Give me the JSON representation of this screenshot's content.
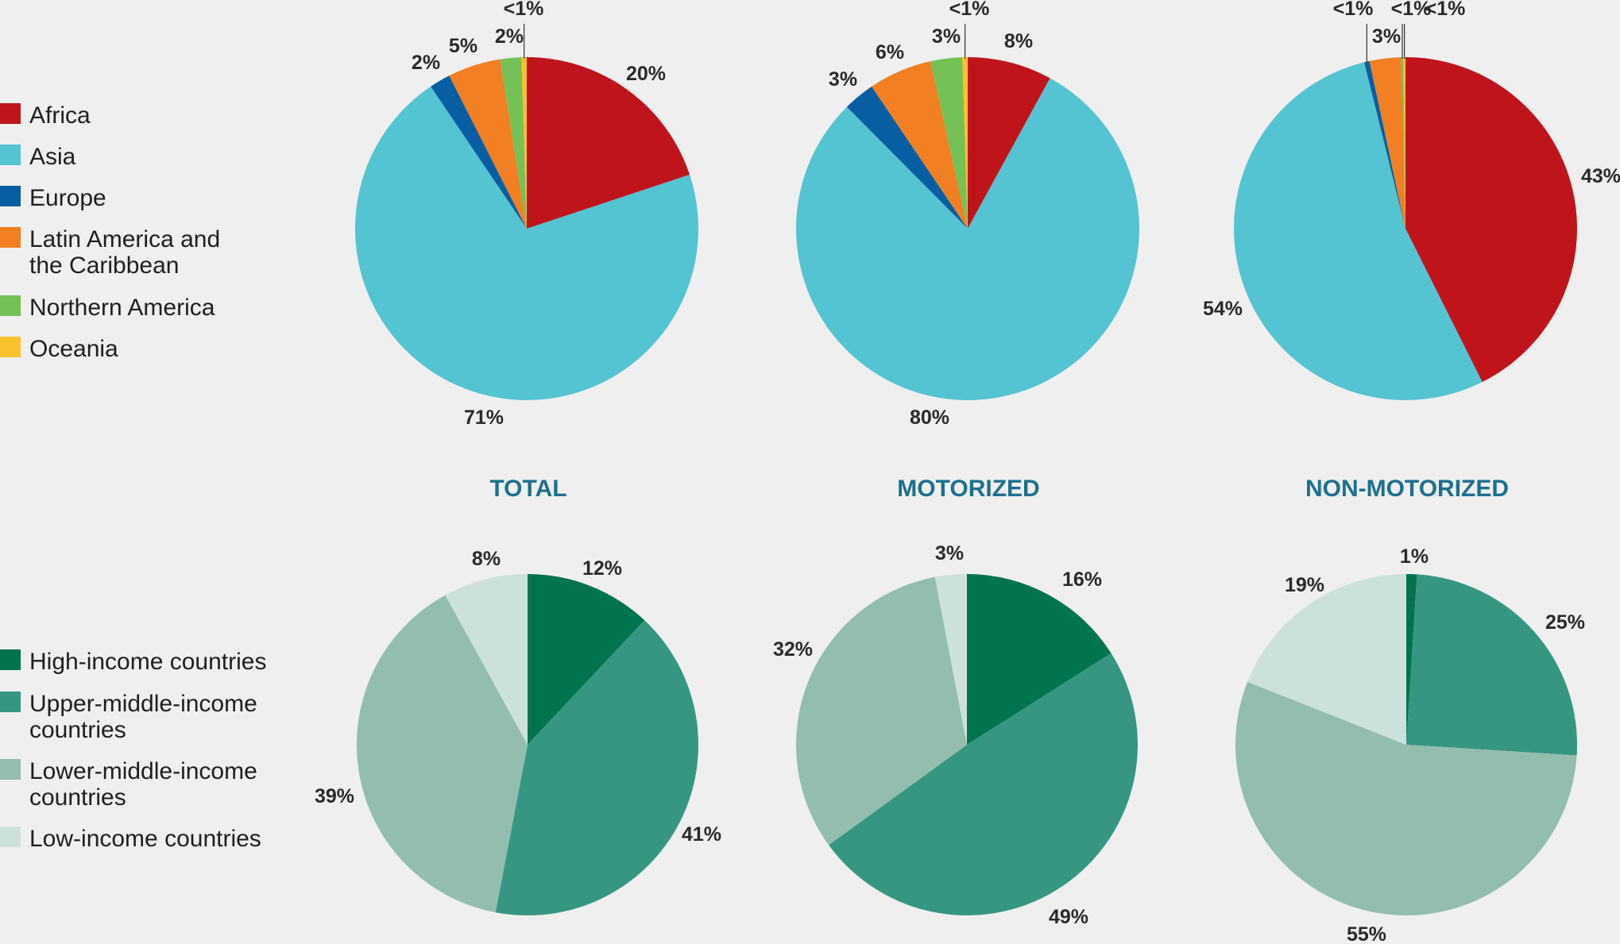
{
  "chart_data": [
    {
      "type": "pie",
      "group": "region",
      "title": "TOTAL",
      "slices": [
        {
          "name": "Africa",
          "value": 20,
          "label": "20%",
          "color": "#c0141c"
        },
        {
          "name": "Asia",
          "value": 71,
          "label": "71%",
          "color": "#54c3d2"
        },
        {
          "name": "Europe",
          "value": 2,
          "label": "2%",
          "color": "#075ea3"
        },
        {
          "name": "Latin America and the Caribbean",
          "value": 5,
          "label": "5%",
          "color": "#f27f22"
        },
        {
          "name": "Northern America",
          "value": 2,
          "label": "2%",
          "color": "#74c156"
        },
        {
          "name": "Oceania",
          "value": 0.5,
          "label": "<1%",
          "color": "#f9c12c"
        }
      ]
    },
    {
      "type": "pie",
      "group": "region",
      "title": "MOTORIZED",
      "slices": [
        {
          "name": "Africa",
          "value": 8,
          "label": "8%",
          "color": "#c0141c"
        },
        {
          "name": "Asia",
          "value": 80,
          "label": "80%",
          "color": "#54c3d2"
        },
        {
          "name": "Europe",
          "value": 3,
          "label": "3%",
          "color": "#075ea3"
        },
        {
          "name": "Latin America and the Caribbean",
          "value": 6,
          "label": "6%",
          "color": "#f27f22"
        },
        {
          "name": "Northern America",
          "value": 3,
          "label": "3%",
          "color": "#74c156"
        },
        {
          "name": "Oceania",
          "value": 0.5,
          "label": "<1%",
          "color": "#f9c12c"
        }
      ]
    },
    {
      "type": "pie",
      "group": "region",
      "title": "NON-MOTORIZED",
      "slices": [
        {
          "name": "Africa",
          "value": 43,
          "label": "43%",
          "color": "#c0141c"
        },
        {
          "name": "Asia",
          "value": 54,
          "label": "54%",
          "color": "#54c3d2"
        },
        {
          "name": "Europe",
          "value": 0.5,
          "label": "<1%",
          "color": "#075ea3"
        },
        {
          "name": "Latin America and the Caribbean",
          "value": 3,
          "label": "3%",
          "color": "#f27f22"
        },
        {
          "name": "Northern America",
          "value": 0.2,
          "label": "<1%",
          "color": "#74c156"
        },
        {
          "name": "Oceania",
          "value": 0.2,
          "label": "<1%",
          "color": "#f9c12c"
        }
      ]
    },
    {
      "type": "pie",
      "group": "income",
      "title": "TOTAL",
      "slices": [
        {
          "name": "High-income countries",
          "value": 12,
          "label": "12%",
          "color": "#00734f"
        },
        {
          "name": "Upper-middle-income countries",
          "value": 41,
          "label": "41%",
          "color": "#369682"
        },
        {
          "name": "Lower-middle-income countries",
          "value": 39,
          "label": "39%",
          "color": "#92bdaf"
        },
        {
          "name": "Low-income countries",
          "value": 8,
          "label": "8%",
          "color": "#cde1dc"
        }
      ]
    },
    {
      "type": "pie",
      "group": "income",
      "title": "MOTORIZED",
      "slices": [
        {
          "name": "High-income countries",
          "value": 16,
          "label": "16%",
          "color": "#00734f"
        },
        {
          "name": "Upper-middle-income countries",
          "value": 49,
          "label": "49%",
          "color": "#369682"
        },
        {
          "name": "Lower-middle-income countries",
          "value": 32,
          "label": "32%",
          "color": "#92bdaf"
        },
        {
          "name": "Low-income countries",
          "value": 3,
          "label": "3%",
          "color": "#cde1dc"
        }
      ]
    },
    {
      "type": "pie",
      "group": "income",
      "title": "NON-MOTORIZED",
      "slices": [
        {
          "name": "High-income countries",
          "value": 1,
          "label": "1%",
          "color": "#00734f"
        },
        {
          "name": "Upper-middle-income countries",
          "value": 25,
          "label": "25%",
          "color": "#369682"
        },
        {
          "name": "Lower-middle-income countries",
          "value": 55,
          "label": "55%",
          "color": "#92bdaf"
        },
        {
          "name": "Low-income countries",
          "value": 19,
          "label": "19%",
          "color": "#cde1dc"
        }
      ]
    }
  ],
  "legends": {
    "region": [
      {
        "name": "Africa",
        "color": "#c0141c"
      },
      {
        "name": "Asia",
        "color": "#54c3d2"
      },
      {
        "name": "Europe",
        "color": "#075ea3"
      },
      {
        "name": "Latin America and the Caribbean",
        "color": "#f27f22"
      },
      {
        "name": "Northern America",
        "color": "#74c156"
      },
      {
        "name": "Oceania",
        "color": "#f9c12c"
      }
    ],
    "income": [
      {
        "name": "High-income countries",
        "color": "#00734f"
      },
      {
        "name": "Upper-middle-income countries",
        "color": "#369682"
      },
      {
        "name": "Lower-middle-income countries",
        "color": "#92bdaf"
      },
      {
        "name": "Low-income countries",
        "color": "#cde1dc"
      }
    ]
  },
  "column_titles": [
    "TOTAL",
    "MOTORIZED",
    "NON-MOTORIZED"
  ],
  "title_color": "#1e6f8f"
}
